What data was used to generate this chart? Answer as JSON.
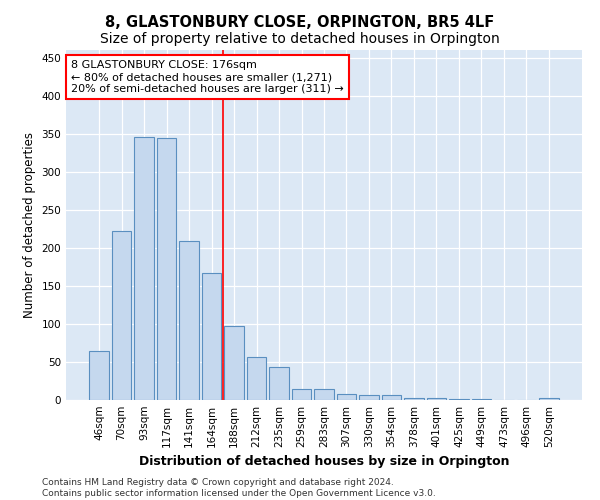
{
  "title": "8, GLASTONBURY CLOSE, ORPINGTON, BR5 4LF",
  "subtitle": "Size of property relative to detached houses in Orpington",
  "xlabel": "Distribution of detached houses by size in Orpington",
  "ylabel": "Number of detached properties",
  "bar_labels": [
    "46sqm",
    "70sqm",
    "93sqm",
    "117sqm",
    "141sqm",
    "164sqm",
    "188sqm",
    "212sqm",
    "235sqm",
    "259sqm",
    "283sqm",
    "307sqm",
    "330sqm",
    "354sqm",
    "378sqm",
    "401sqm",
    "425sqm",
    "449sqm",
    "473sqm",
    "496sqm",
    "520sqm"
  ],
  "bar_values": [
    65,
    222,
    346,
    345,
    209,
    167,
    97,
    57,
    43,
    15,
    15,
    8,
    7,
    6,
    3,
    3,
    1,
    1,
    0,
    0,
    3
  ],
  "bar_color": "#c5d8ee",
  "bar_edge_color": "#5a8fc0",
  "vline_x": 5.5,
  "vline_color": "red",
  "annotation_text": "8 GLASTONBURY CLOSE: 176sqm\n← 80% of detached houses are smaller (1,271)\n20% of semi-detached houses are larger (311) →",
  "annotation_box_color": "white",
  "annotation_box_edge": "red",
  "ylim": [
    0,
    460
  ],
  "yticks": [
    0,
    50,
    100,
    150,
    200,
    250,
    300,
    350,
    400,
    450
  ],
  "background_color": "#ffffff",
  "plot_bg_color": "#dce8f5",
  "footer": "Contains HM Land Registry data © Crown copyright and database right 2024.\nContains public sector information licensed under the Open Government Licence v3.0.",
  "title_fontsize": 10.5,
  "xlabel_fontsize": 9,
  "ylabel_fontsize": 8.5,
  "tick_fontsize": 7.5,
  "footer_fontsize": 6.5,
  "ann_fontsize": 8
}
